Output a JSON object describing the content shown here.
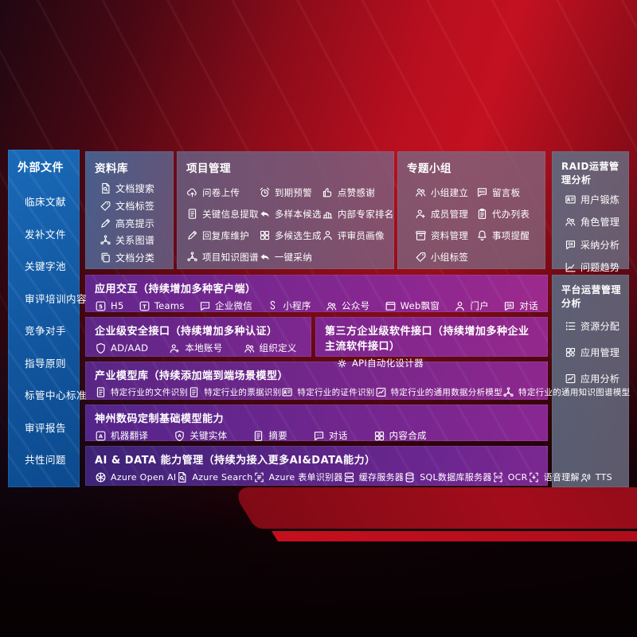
{
  "palette": {
    "sidebar_blue": "#11569f",
    "panel_slate": "#6b7892",
    "row_purple": "#7c2b90",
    "bg_red": "#b80f1f",
    "deep_red": "#470813"
  },
  "sidebar": {
    "title": "外部文件",
    "items": [
      {
        "label": "临床文献"
      },
      {
        "label": "发补文件"
      },
      {
        "label": "关键字池"
      },
      {
        "label": "审评培训内容"
      },
      {
        "label": "竞争对手"
      },
      {
        "label": "指导原则"
      },
      {
        "label": "标管中心标准"
      },
      {
        "label": "审评报告"
      },
      {
        "label": "共性问题"
      }
    ]
  },
  "library": {
    "title": "资料库",
    "items": [
      {
        "icon": "doc-search",
        "label": "文档搜索"
      },
      {
        "icon": "tag",
        "label": "文档标签"
      },
      {
        "icon": "pen",
        "label": "高亮提示"
      },
      {
        "icon": "graph",
        "label": "关系图谱"
      },
      {
        "icon": "docs-copy",
        "label": "文档分类"
      }
    ]
  },
  "project": {
    "title": "项目管理",
    "items": [
      {
        "icon": "cloud-upload",
        "label": "问卷上传"
      },
      {
        "icon": "doc-lines",
        "label": "关键信息提取"
      },
      {
        "icon": "pen",
        "label": "回复库维护"
      },
      {
        "icon": "graph",
        "label": "项目知识图谱"
      },
      {
        "icon": "alarm",
        "label": "到期预警"
      },
      {
        "icon": "reply-arrow",
        "label": "多样本候选"
      },
      {
        "icon": "grid",
        "label": "多候选生成"
      },
      {
        "icon": "reply-arrow",
        "label": "一键采纳"
      },
      {
        "icon": "thumbs-up",
        "label": "点赞感谢"
      },
      {
        "icon": "rank-podium",
        "label": "内部专家排名"
      },
      {
        "icon": "person",
        "label": "评审员画像"
      }
    ]
  },
  "groups": {
    "title": "专题小组",
    "items": [
      {
        "icon": "people",
        "label": "小组建立"
      },
      {
        "icon": "person-plus",
        "label": "成员管理"
      },
      {
        "icon": "archive-box",
        "label": "资料管理"
      },
      {
        "icon": "tag",
        "label": "小组标签"
      },
      {
        "icon": "bbs-chat",
        "label": "留言板"
      },
      {
        "icon": "clipboard",
        "label": "代办列表"
      },
      {
        "icon": "bell",
        "label": "事项提醒"
      }
    ]
  },
  "raid": {
    "title": "RAID运营管理分析",
    "items": [
      {
        "icon": "id-card",
        "label": "用户锻炼"
      },
      {
        "icon": "people",
        "label": "角色管理"
      },
      {
        "icon": "qa-chat",
        "label": "采纳分析"
      },
      {
        "icon": "trend-chart",
        "label": "问题趋势"
      }
    ]
  },
  "platform": {
    "title": "平台运营管理分析",
    "items": [
      {
        "icon": "list",
        "label": "资源分配"
      },
      {
        "icon": "app-grid",
        "label": "应用管理"
      },
      {
        "icon": "chart-box",
        "label": "应用分析"
      }
    ]
  },
  "interaction": {
    "title": "应用交互（持续增加多种客户端）",
    "items": [
      {
        "icon": "h5-badge",
        "label": "H5"
      },
      {
        "icon": "teams-badge",
        "label": "Teams"
      },
      {
        "icon": "chat-bubble",
        "label": "企业微信"
      },
      {
        "icon": "s-curve",
        "label": "小程序"
      },
      {
        "icon": "people",
        "label": "公众号"
      },
      {
        "icon": "browser-window",
        "label": "Web飘窗"
      },
      {
        "icon": "person",
        "label": "门户"
      },
      {
        "icon": "qa-chat",
        "label": "对话"
      }
    ]
  },
  "security": {
    "title": "企业级安全接口（持续增加多种认证）",
    "items": [
      {
        "icon": "shield",
        "label": "AD/AAD"
      },
      {
        "icon": "person-plus",
        "label": "本地账号"
      },
      {
        "icon": "people",
        "label": "组织定义"
      }
    ]
  },
  "thirdparty": {
    "title": "第三方企业级软件接口（持续增加多种企业主流软件接口）",
    "items": [
      {
        "icon": "gear",
        "label": "API自动化设计器"
      }
    ]
  },
  "industry": {
    "title": "产业模型库（持续添加端到端场景模型）",
    "items": [
      {
        "icon": "doc-lines",
        "label": "特定行业的文件识别"
      },
      {
        "icon": "doc-lines",
        "label": "特定行业的票据识别"
      },
      {
        "icon": "id-card",
        "label": "特定行业的证件识别"
      },
      {
        "icon": "chart-box",
        "label": "特定行业的通用数据分析模型"
      },
      {
        "icon": "graph",
        "label": "特定行业的通用知识图谱模型"
      }
    ]
  },
  "custom": {
    "title": "神州数码定制基础模型能力",
    "items": [
      {
        "icon": "translate-badge",
        "label": "机器翻译"
      },
      {
        "icon": "shield-a",
        "label": "关键实体"
      },
      {
        "icon": "doc-lines",
        "label": "摘要"
      },
      {
        "icon": "chat-bubble",
        "label": "对话"
      },
      {
        "icon": "grid",
        "label": "内容合成"
      }
    ]
  },
  "aidata": {
    "title": "AI & DATA 能力管理（持续为接入更多AI&DATA能力）",
    "items": [
      {
        "icon": "openai-flower",
        "label": "Azure Open AI"
      },
      {
        "icon": "doc-search",
        "label": "Azure Search"
      },
      {
        "icon": "scan-brackets",
        "label": "Azure 表单识别器"
      },
      {
        "icon": "server",
        "label": "缓存服务器"
      },
      {
        "icon": "database",
        "label": "SQL数据库服务器"
      },
      {
        "icon": "ocr-scan",
        "label": "OCR"
      },
      {
        "icon": "speech-scan",
        "label": "语音理解"
      },
      {
        "icon": "tts-person",
        "label": "TTS"
      }
    ]
  }
}
